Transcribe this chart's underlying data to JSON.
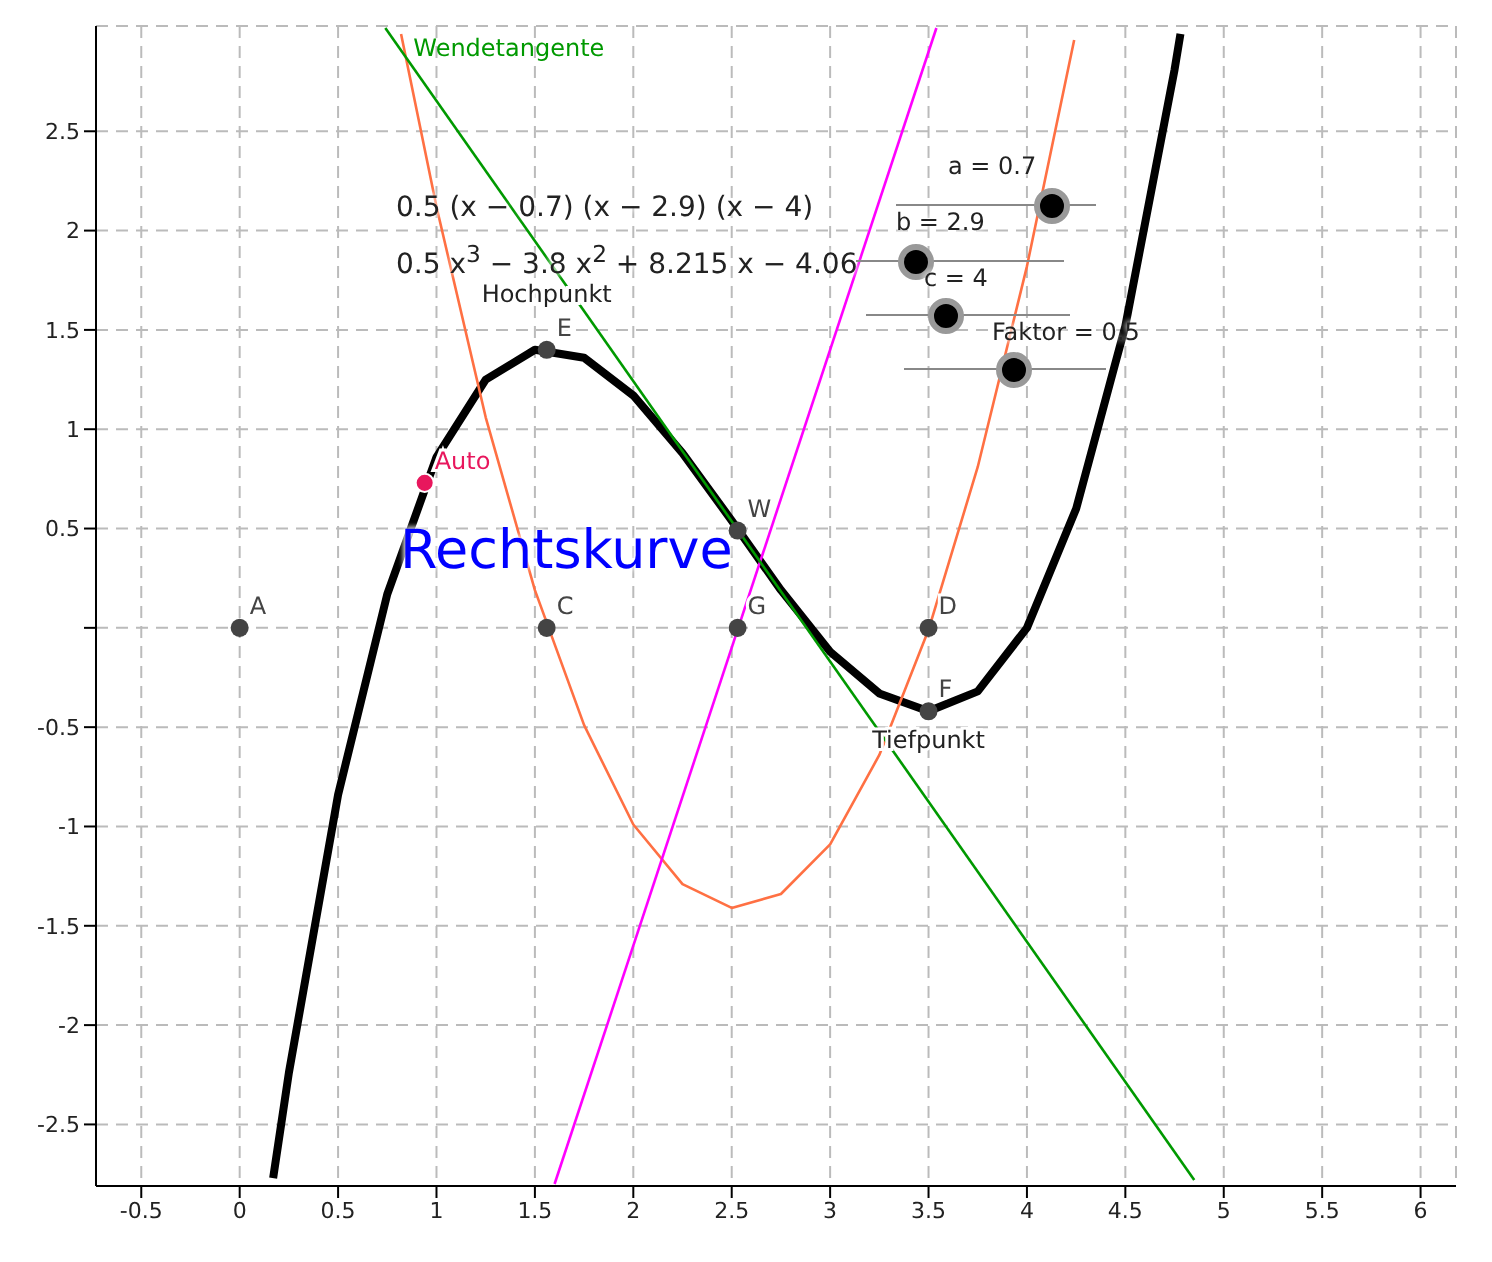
{
  "chart_data": {
    "type": "line",
    "xlim": [
      -0.73,
      6.18
    ],
    "ylim": [
      -2.81,
      3.03
    ],
    "xticks": [
      -0.5,
      0,
      0.5,
      1,
      1.5,
      2,
      2.5,
      3,
      3.5,
      4,
      4.5,
      5,
      5.5,
      6
    ],
    "yticks": [
      -2.5,
      -2,
      -1.5,
      -1,
      -0.5,
      {
        "value": 0,
        "label": null
      },
      0.5,
      1,
      1.5,
      2,
      2.5
    ],
    "grid": true,
    "line_style": "solid",
    "series": [
      {
        "color": "#000000",
        "x": [
          0.17,
          0.25,
          0.5,
          0.75,
          1,
          1.25,
          1.5,
          1.75,
          2,
          2.25,
          2.5,
          2.75,
          3,
          3.25,
          3.5,
          3.75,
          4,
          4.25,
          4.5,
          4.75,
          4.78
        ],
        "values": [
          -2.77,
          -2.24,
          -0.84,
          0.17,
          0.86,
          1.25,
          1.4,
          1.36,
          1.17,
          0.88,
          0.54,
          0.19,
          -0.12,
          -0.33,
          -0.42,
          -0.32,
          0,
          0.6,
          1.52,
          2.81,
          2.99
        ]
      },
      {
        "color": "#ff7043",
        "x": [
          0.82,
          1,
          1.25,
          1.5,
          1.75,
          2,
          2.25,
          2.5,
          2.75,
          3,
          3.25,
          3.5,
          3.75,
          4,
          4.24
        ],
        "values": [
          2.99,
          2.12,
          1.06,
          0.19,
          -0.49,
          -0.99,
          -1.29,
          -1.41,
          -1.34,
          -1.09,
          -0.64,
          -0.01,
          0.81,
          1.82,
          2.96
        ]
      },
      {
        "color": "#ff00ff",
        "x": [
          1.6,
          3.54
        ],
        "values": [
          -2.8,
          3.02
        ]
      },
      {
        "name": "Wendetangente",
        "color": "#009900",
        "x": [
          0.74,
          4.85
        ],
        "values": [
          3.02,
          -2.78
        ]
      },
      {
        "type": "scatter",
        "name": "A",
        "color": "#444444",
        "x": [
          0
        ],
        "values": [
          0
        ]
      },
      {
        "type": "scatter",
        "name": "C",
        "color": "#444444",
        "x": [
          1.56
        ],
        "values": [
          0
        ]
      },
      {
        "type": "scatter",
        "name": "G",
        "color": "#444444",
        "x": [
          2.53
        ],
        "values": [
          0
        ]
      },
      {
        "type": "scatter",
        "name": "D",
        "color": "#444444",
        "x": [
          3.5
        ],
        "values": [
          0
        ]
      },
      {
        "type": "scatter",
        "name": "W",
        "color": "#444444",
        "x": [
          2.53
        ],
        "values": [
          0.49
        ]
      },
      {
        "type": "scatter",
        "name": "E",
        "color": "#444444",
        "x": [
          1.56
        ],
        "values": [
          1.4
        ]
      },
      {
        "type": "scatter",
        "name": "F",
        "color": "#444444",
        "x": [
          3.5
        ],
        "values": [
          -0.42
        ]
      },
      {
        "type": "scatter",
        "name": "Auto",
        "color": "#e8175d",
        "x": [
          0.94
        ],
        "values": [
          0.73
        ]
      }
    ],
    "annotations": [
      {
        "text": "Hochpunkt",
        "x": 1.56,
        "y": 1.4
      },
      {
        "text": "Tiefpunkt",
        "x": 3.5,
        "y": -0.42
      },
      "0.5  (x − 0.7)  (x − 2.9)  (x − 4)",
      "0.5 x$^{3}$ − 3.8 x$^{2}$ + 8.215 x − 4.06",
      "Rechtskurve",
      "a = 0.7",
      "b = 2.9",
      "c = 4",
      "Faktor = 0.5"
    ]
  }
}
